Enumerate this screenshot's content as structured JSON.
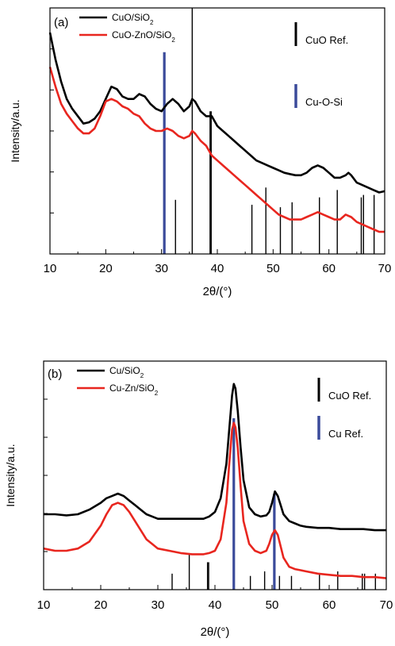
{
  "chart_data": [
    {
      "type": "line",
      "panel_label": "(a)",
      "xlabel": "2θ/(°)",
      "ylabel": "Intensity/a.u.",
      "xlim": [
        10,
        70
      ],
      "x_ticks": [
        "10",
        "20",
        "30",
        "40",
        "50",
        "60",
        "70"
      ],
      "series": [
        {
          "name": "CuO/SiO2",
          "color": "#000000",
          "points": [
            [
              10,
              90
            ],
            [
              11,
              79
            ],
            [
              12,
              70
            ],
            [
              13,
              63
            ],
            [
              14,
              59
            ],
            [
              15,
              56
            ],
            [
              16,
              53
            ],
            [
              17,
              53.5
            ],
            [
              18,
              55
            ],
            [
              19,
              58
            ],
            [
              20,
              63
            ],
            [
              21,
              68
            ],
            [
              22,
              67
            ],
            [
              23,
              64
            ],
            [
              24,
              63
            ],
            [
              25,
              63
            ],
            [
              26,
              65
            ],
            [
              27,
              64
            ],
            [
              28,
              61
            ],
            [
              29,
              59
            ],
            [
              30,
              58
            ],
            [
              31,
              61
            ],
            [
              32,
              63
            ],
            [
              33,
              61
            ],
            [
              34,
              58
            ],
            [
              35,
              60
            ],
            [
              35.5,
              63
            ],
            [
              36,
              62
            ],
            [
              37,
              58
            ],
            [
              38,
              56
            ],
            [
              39,
              56
            ],
            [
              40,
              52
            ],
            [
              41,
              50
            ],
            [
              42,
              48
            ],
            [
              43,
              46
            ],
            [
              44,
              44
            ],
            [
              45,
              42
            ],
            [
              46,
              40
            ],
            [
              47,
              38
            ],
            [
              48,
              37
            ],
            [
              49,
              36
            ],
            [
              50,
              35
            ],
            [
              51,
              34
            ],
            [
              52,
              33
            ],
            [
              53,
              32.5
            ],
            [
              54,
              32
            ],
            [
              55,
              32
            ],
            [
              56,
              33
            ],
            [
              57,
              35
            ],
            [
              58,
              36
            ],
            [
              59,
              35
            ],
            [
              60,
              33
            ],
            [
              61,
              31
            ],
            [
              62,
              31
            ],
            [
              63,
              32
            ],
            [
              63.5,
              33
            ],
            [
              64,
              32
            ],
            [
              65,
              29
            ],
            [
              66,
              28
            ],
            [
              67,
              27
            ],
            [
              68,
              26
            ],
            [
              69,
              25
            ],
            [
              70,
              25.5
            ]
          ]
        },
        {
          "name": "CuO-ZnO/SiO2",
          "color": "#e8261f",
          "points": [
            [
              10,
              76
            ],
            [
              11,
              68
            ],
            [
              12,
              61
            ],
            [
              13,
              57
            ],
            [
              14,
              54
            ],
            [
              15,
              51
            ],
            [
              16,
              49
            ],
            [
              17,
              49
            ],
            [
              18,
              51
            ],
            [
              19,
              56
            ],
            [
              20,
              62
            ],
            [
              21,
              63
            ],
            [
              22,
              62
            ],
            [
              23,
              60
            ],
            [
              24,
              59
            ],
            [
              25,
              57
            ],
            [
              26,
              56
            ],
            [
              27,
              53
            ],
            [
              28,
              51
            ],
            [
              29,
              50
            ],
            [
              30,
              50
            ],
            [
              31,
              51
            ],
            [
              32,
              50
            ],
            [
              33,
              48
            ],
            [
              34,
              47
            ],
            [
              35,
              48
            ],
            [
              35.5,
              50
            ],
            [
              36,
              49
            ],
            [
              37,
              46
            ],
            [
              38,
              44
            ],
            [
              39,
              40
            ],
            [
              40,
              38
            ],
            [
              41,
              36
            ],
            [
              42,
              34
            ],
            [
              43,
              32
            ],
            [
              44,
              30
            ],
            [
              45,
              28
            ],
            [
              46,
              26
            ],
            [
              47,
              24
            ],
            [
              48,
              22
            ],
            [
              49,
              20
            ],
            [
              50,
              18
            ],
            [
              51,
              16
            ],
            [
              52,
              15
            ],
            [
              53,
              14
            ],
            [
              54,
              14
            ],
            [
              55,
              14
            ],
            [
              56,
              15
            ],
            [
              57,
              16
            ],
            [
              58,
              17
            ],
            [
              59,
              16
            ],
            [
              60,
              15
            ],
            [
              61,
              14
            ],
            [
              62,
              14
            ],
            [
              63,
              16
            ],
            [
              64,
              15
            ],
            [
              65,
              13
            ],
            [
              66,
              12
            ],
            [
              67,
              11
            ],
            [
              68,
              10
            ],
            [
              69,
              9
            ],
            [
              70,
              9
            ]
          ]
        }
      ],
      "references": [
        {
          "name": "CuO Ref.",
          "color": "#000000",
          "peaks": [
            [
              32.5,
              22
            ],
            [
              35.5,
              100
            ],
            [
              38.7,
              58
            ],
            [
              38.9,
              58
            ],
            [
              46.2,
              20
            ],
            [
              48.7,
              27
            ],
            [
              51.3,
              19
            ],
            [
              53.4,
              21
            ],
            [
              58.3,
              23
            ],
            [
              61.5,
              26
            ],
            [
              65.8,
              23
            ],
            [
              66.2,
              24
            ],
            [
              68.1,
              24
            ]
          ]
        },
        {
          "name": "Cu-O-Si",
          "color": "#3a4a9a",
          "peaks": [
            [
              30.5,
              82
            ]
          ]
        }
      ]
    },
    {
      "type": "line",
      "panel_label": "(b)",
      "xlabel": "2θ/(°)",
      "ylabel": "Intensity/a.u.",
      "xlim": [
        10,
        70
      ],
      "x_ticks": [
        "10",
        "20",
        "30",
        "40",
        "50",
        "60",
        "70"
      ],
      "series": [
        {
          "name": "Cu/SiO2",
          "color": "#000000",
          "points": [
            [
              10,
              33
            ],
            [
              12,
              33
            ],
            [
              14,
              32.5
            ],
            [
              16,
              33
            ],
            [
              18,
              35
            ],
            [
              20,
              38
            ],
            [
              21,
              40
            ],
            [
              22,
              41
            ],
            [
              23,
              42
            ],
            [
              24,
              41
            ],
            [
              25,
              39
            ],
            [
              26,
              37
            ],
            [
              27,
              35
            ],
            [
              28,
              33
            ],
            [
              29,
              32
            ],
            [
              30,
              31
            ],
            [
              32,
              31
            ],
            [
              34,
              31
            ],
            [
              36,
              31
            ],
            [
              38,
              31
            ],
            [
              39,
              32
            ],
            [
              40,
              34
            ],
            [
              41,
              40
            ],
            [
              42,
              55
            ],
            [
              42.5,
              70
            ],
            [
              43,
              85
            ],
            [
              43.3,
              90
            ],
            [
              43.6,
              88
            ],
            [
              44,
              78
            ],
            [
              44.5,
              62
            ],
            [
              45,
              48
            ],
            [
              46,
              36
            ],
            [
              47,
              33
            ],
            [
              48,
              32
            ],
            [
              49,
              32.5
            ],
            [
              49.5,
              34
            ],
            [
              50,
              38
            ],
            [
              50.5,
              43
            ],
            [
              51,
              41
            ],
            [
              51.5,
              37
            ],
            [
              52,
              33
            ],
            [
              53,
              30
            ],
            [
              54,
              29
            ],
            [
              55,
              28
            ],
            [
              56,
              27.5
            ],
            [
              58,
              27
            ],
            [
              60,
              27
            ],
            [
              62,
              26.5
            ],
            [
              64,
              26.5
            ],
            [
              66,
              26.5
            ],
            [
              68,
              26
            ],
            [
              70,
              26
            ]
          ]
        },
        {
          "name": "Cu-Zn/SiO2",
          "color": "#e8261f",
          "points": [
            [
              10,
              18
            ],
            [
              12,
              17
            ],
            [
              14,
              17
            ],
            [
              16,
              18
            ],
            [
              18,
              21
            ],
            [
              20,
              28
            ],
            [
              21,
              33
            ],
            [
              22,
              37
            ],
            [
              23,
              38
            ],
            [
              24,
              37
            ],
            [
              25,
              34
            ],
            [
              26,
              30
            ],
            [
              27,
              26
            ],
            [
              28,
              22
            ],
            [
              29,
              20
            ],
            [
              30,
              18
            ],
            [
              32,
              17
            ],
            [
              34,
              16
            ],
            [
              36,
              15.5
            ],
            [
              38,
              15.5
            ],
            [
              39,
              16
            ],
            [
              40,
              17
            ],
            [
              41,
              22
            ],
            [
              42,
              38
            ],
            [
              42.5,
              55
            ],
            [
              43,
              70
            ],
            [
              43.3,
              73
            ],
            [
              43.6,
              71
            ],
            [
              44,
              62
            ],
            [
              44.5,
              45
            ],
            [
              45,
              30
            ],
            [
              46,
              20
            ],
            [
              47,
              17
            ],
            [
              48,
              16
            ],
            [
              49,
              17
            ],
            [
              49.5,
              20
            ],
            [
              50,
              24
            ],
            [
              50.5,
              26
            ],
            [
              51,
              24
            ],
            [
              51.5,
              19
            ],
            [
              52,
              14
            ],
            [
              53,
              10
            ],
            [
              54,
              9
            ],
            [
              55,
              8.5
            ],
            [
              56,
              8
            ],
            [
              58,
              7
            ],
            [
              60,
              6.5
            ],
            [
              62,
              6
            ],
            [
              64,
              6
            ],
            [
              66,
              5.5
            ],
            [
              68,
              5.5
            ],
            [
              70,
              5
            ]
          ]
        }
      ],
      "references": [
        {
          "name": "CuO Ref.",
          "color": "#000000",
          "peaks": [
            [
              32.5,
              7
            ],
            [
              35.5,
              16
            ],
            [
              38.7,
              12
            ],
            [
              38.9,
              12
            ],
            [
              46.2,
              6
            ],
            [
              48.7,
              8
            ],
            [
              51.3,
              6
            ],
            [
              53.4,
              6
            ],
            [
              58.3,
              7
            ],
            [
              61.5,
              8
            ],
            [
              65.8,
              7
            ],
            [
              66.2,
              7
            ],
            [
              68.1,
              7
            ]
          ]
        },
        {
          "name": "Cu Ref.",
          "color": "#3a4a9a",
          "peaks": [
            [
              43.3,
              75
            ],
            [
              50.4,
              42
            ]
          ]
        }
      ]
    }
  ]
}
